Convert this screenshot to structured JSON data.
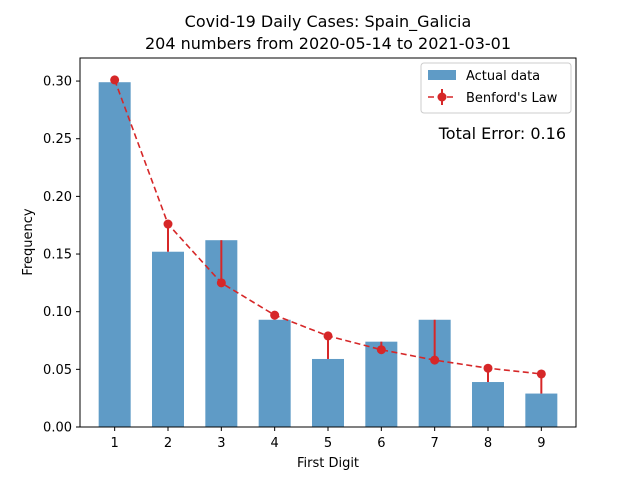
{
  "chart_data": {
    "type": "bar",
    "title": "Covid-19 Daily Cases: Spain_Galicia",
    "subtitle": "204 numbers from 2020-05-14 to 2021-03-01",
    "xlabel": "First Digit",
    "ylabel": "Frequency",
    "categories": [
      "1",
      "2",
      "3",
      "4",
      "5",
      "6",
      "7",
      "8",
      "9"
    ],
    "ylim": [
      0,
      0.32
    ],
    "yticks": [
      "0.00",
      "0.05",
      "0.10",
      "0.15",
      "0.20",
      "0.25",
      "0.30"
    ],
    "series": [
      {
        "name": "Actual data",
        "kind": "bar",
        "color": "#5f9bc6",
        "values": [
          0.299,
          0.152,
          0.162,
          0.093,
          0.059,
          0.074,
          0.093,
          0.039,
          0.029
        ]
      },
      {
        "name": "Benford's Law",
        "kind": "line",
        "style": "dashed",
        "marker": "circle",
        "color": "#d62728",
        "values": [
          0.301,
          0.176,
          0.125,
          0.097,
          0.079,
          0.067,
          0.058,
          0.051,
          0.046
        ]
      }
    ],
    "legend_position": "top-right",
    "annotation": "Total Error: 0.16",
    "annotation_color": "#d62728",
    "grid": false
  }
}
